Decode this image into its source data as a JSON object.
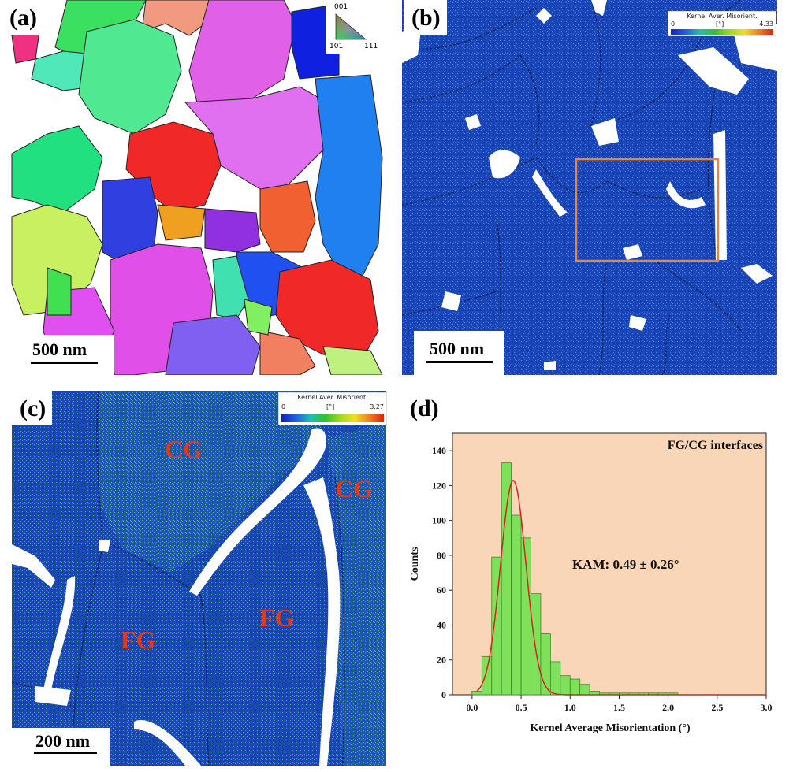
{
  "panels": {
    "a": {
      "label": "(a)",
      "scale_label": "500 nm",
      "ipf_key": {
        "top": "001",
        "left": "101",
        "right": "111"
      }
    },
    "b": {
      "label": "(b)",
      "scale_label": "500 nm",
      "legend": {
        "title": "Kernel Aver. Misorient.",
        "unit": "[°]",
        "min": "0",
        "max": "4.33"
      }
    },
    "c": {
      "label": "(c)",
      "scale_label": "200 nm",
      "legend": {
        "title": "Kernel Aver. Misorient.",
        "unit": "[°]",
        "min": "0",
        "max": "3.27"
      },
      "grain_labels": [
        "CG",
        "CG",
        "FG",
        "FG"
      ]
    },
    "d": {
      "label": "(d)"
    }
  },
  "colors": {
    "kam_background": "#1a47b8",
    "histogram_fill": "#7fe05a",
    "histogram_bg": "#f9d6b8",
    "fit_curve": "#e02020",
    "grain_label": "#e03a1e",
    "roi_box": "#d98a4a"
  },
  "chart_data": {
    "type": "bar",
    "title": "FG/CG interfaces",
    "annotation": "KAM: 0.49 ± 0.26°",
    "xlabel": "Kernel Average Misorientation (°)",
    "ylabel": "Counts",
    "xlim": [
      -0.2,
      3.0
    ],
    "ylim": [
      0,
      150
    ],
    "xticks": [
      "0.0",
      "0.5",
      "1.0",
      "1.5",
      "2.0",
      "2.5",
      "3.0"
    ],
    "yticks": [
      "0",
      "20",
      "40",
      "60",
      "80",
      "100",
      "120",
      "140"
    ],
    "bin_width": 0.1,
    "bin_starts": [
      0.0,
      0.1,
      0.2,
      0.3,
      0.4,
      0.5,
      0.6,
      0.7,
      0.8,
      0.9,
      1.0,
      1.1,
      1.2,
      1.3,
      1.4,
      1.5,
      1.6,
      1.7,
      1.8,
      1.9,
      2.0
    ],
    "values": [
      2,
      22,
      79,
      133,
      103,
      90,
      58,
      35,
      19,
      11,
      9,
      6,
      2,
      1,
      1,
      1,
      1,
      1,
      1,
      1,
      1
    ],
    "fit": {
      "mean": 0.42,
      "sd": 0.13,
      "peak": 123,
      "x_start": 0.05,
      "x_end": 3.0
    }
  }
}
